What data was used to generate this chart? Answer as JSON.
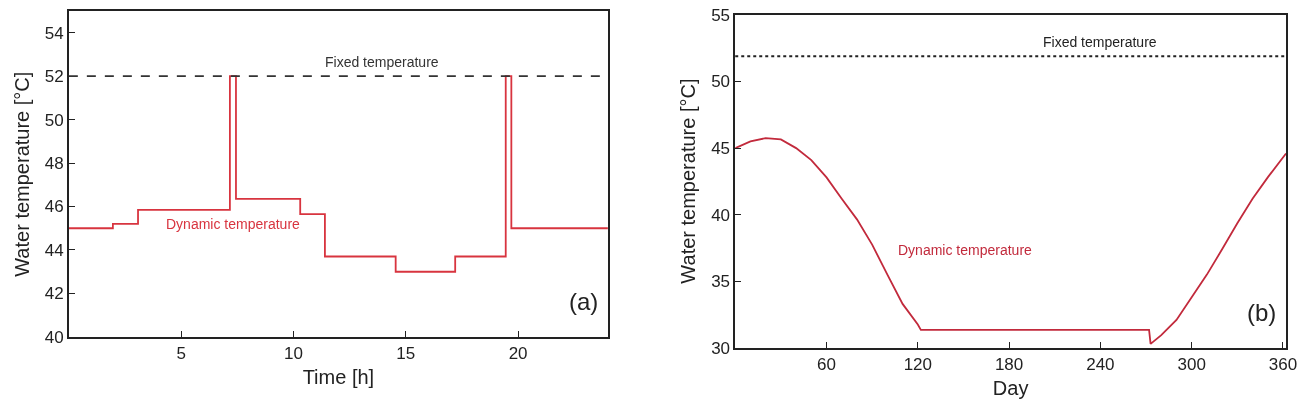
{
  "chart_data": [
    {
      "type": "step",
      "xlabel": "Time [h]",
      "ylabel": "Water temperature [°C]",
      "xlim": [
        0,
        24
      ],
      "ylim": [
        40,
        55
      ],
      "xticks": [
        5,
        10,
        15,
        20
      ],
      "yticks": [
        40,
        42,
        44,
        46,
        48,
        50,
        52,
        54
      ],
      "series": [
        {
          "color": "#d8343f",
          "x": [
            0,
            1.96,
            3.08,
            7.17,
            7.44,
            10.3,
            11.4,
            14.55,
            17.2,
            19.45,
            19.7,
            24
          ],
          "values": [
            45,
            45.2,
            45.85,
            52,
            46.35,
            45.65,
            43.7,
            43,
            43.7,
            52,
            45,
            45
          ]
        }
      ],
      "ref_lines": [
        {
          "axis": "y",
          "value": 52,
          "label": "Fixed temperature",
          "color": "#333333",
          "line_style": "dashed"
        }
      ],
      "annotations": [
        "Dynamic temperature",
        "(a)"
      ]
    },
    {
      "type": "line",
      "xlabel": "Day",
      "ylabel": "Water temperature [°C]",
      "xlim": [
        0,
        362
      ],
      "ylim": [
        30,
        55
      ],
      "xticks": [
        60,
        120,
        180,
        240,
        300,
        360
      ],
      "yticks": [
        30,
        35,
        40,
        45,
        50,
        55
      ],
      "series": [
        {
          "color": "#c22a3c",
          "x": [
            0,
            10,
            20,
            30,
            40,
            50,
            60,
            70,
            80,
            90,
            100,
            110,
            120,
            122,
            272,
            273,
            280,
            290,
            300,
            310,
            320,
            330,
            340,
            350,
            362
          ],
          "values": [
            45.0,
            45.5,
            45.75,
            45.65,
            45.0,
            44.1,
            42.8,
            41.2,
            39.65,
            37.75,
            35.5,
            33.3,
            31.75,
            31.35,
            31.35,
            30.3,
            30.95,
            32.1,
            33.8,
            35.5,
            37.4,
            39.35,
            41.2,
            42.8,
            44.6
          ]
        }
      ],
      "ref_lines": [
        {
          "axis": "y",
          "value": 51.9,
          "label": "Fixed temperature",
          "color": "#222222",
          "line_style": "dotted"
        }
      ],
      "annotations": [
        "Dynamic temperature",
        "(b)"
      ]
    }
  ]
}
